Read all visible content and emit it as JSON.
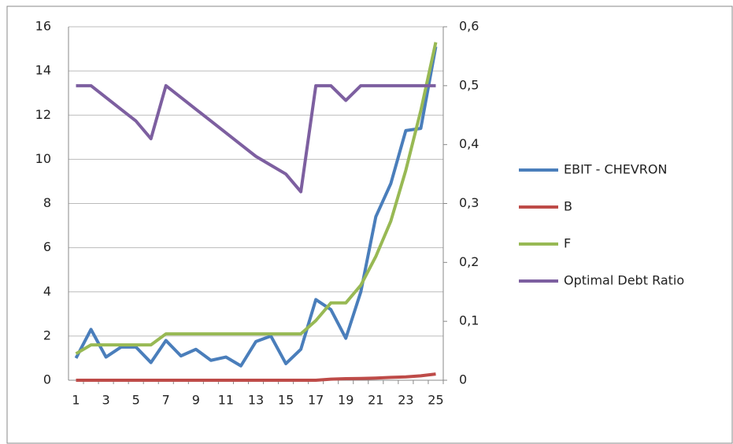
{
  "chart_data": {
    "type": "line",
    "categories": [
      1,
      null,
      3,
      null,
      5,
      null,
      7,
      null,
      9,
      null,
      11,
      null,
      13,
      null,
      15,
      null,
      17,
      null,
      19,
      null,
      21,
      null,
      23,
      null,
      25
    ],
    "series": [
      {
        "name": "EBIT - CHEVRON",
        "color": "#4a7ebb",
        "values": [
          1.0,
          2.3,
          1.05,
          1.5,
          1.5,
          0.8,
          1.8,
          1.1,
          1.4,
          0.9,
          1.05,
          0.65,
          1.75,
          2.0,
          0.75,
          1.4,
          3.65,
          3.2,
          1.9,
          4.0,
          7.4,
          8.9,
          11.3,
          11.4,
          15.1
        ]
      },
      {
        "name": "B",
        "color": "#be4b48",
        "values": [
          0,
          0,
          0,
          0,
          0,
          0,
          0,
          0,
          0,
          0,
          0,
          0,
          0,
          0,
          0,
          0,
          0,
          0.05,
          0.07,
          0.08,
          0.1,
          0.13,
          0.15,
          0.2,
          0.28
        ]
      },
      {
        "name": "F",
        "color": "#98b954",
        "values": [
          1.2,
          1.6,
          1.6,
          1.6,
          1.6,
          1.6,
          2.1,
          2.1,
          2.1,
          2.1,
          2.1,
          2.1,
          2.1,
          2.1,
          2.1,
          2.1,
          2.7,
          3.5,
          3.5,
          4.3,
          5.6,
          7.2,
          9.5,
          12.2,
          15.3
        ]
      },
      {
        "name": "Optimal Debt Ratio",
        "color": "#7d5fa0",
        "axis": "y2",
        "values": [
          0.5,
          0.5,
          0.48,
          0.46,
          0.44,
          0.41,
          0.5,
          0.48,
          0.46,
          0.44,
          0.42,
          0.4,
          0.38,
          0.365,
          0.35,
          0.32,
          0.5,
          0.5,
          0.475,
          0.5,
          0.5,
          0.5,
          0.5,
          0.5,
          0.5
        ]
      }
    ],
    "ylim": [
      0,
      16
    ],
    "yticks": [
      0,
      2,
      4,
      6,
      8,
      10,
      12,
      14,
      16
    ],
    "y2lim": [
      0,
      0.6
    ],
    "y2ticks": [
      0,
      {
        "value": 0.1,
        "label": "0,1"
      },
      {
        "value": 0.2,
        "label": "0,2"
      },
      {
        "value": 0.3,
        "label": "0,3"
      },
      {
        "value": 0.4,
        "label": "0,4"
      },
      {
        "value": 0.5,
        "label": "0,5"
      },
      {
        "value": 0.6,
        "label": "0,6"
      }
    ],
    "grid": true,
    "legend": "right"
  }
}
